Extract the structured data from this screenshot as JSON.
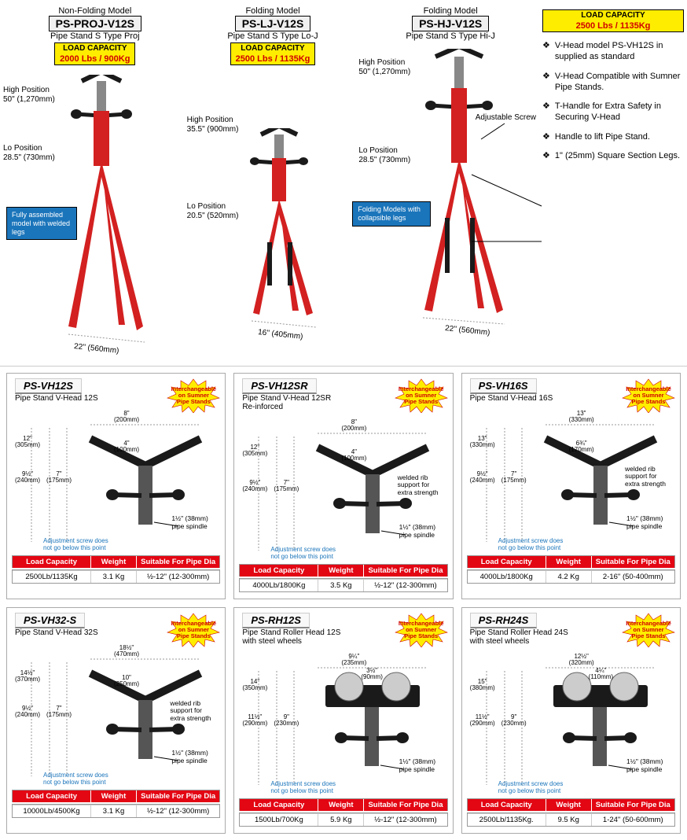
{
  "colors": {
    "red": "#e30613",
    "yellow": "#ffed00",
    "blue": "#1b75bb",
    "stand_red": "#d32020",
    "black": "#1a1a1a"
  },
  "top": {
    "stands": [
      {
        "type": "Non-Folding Model",
        "code": "PS-PROJ-V12S",
        "sub": "Pipe Stand S Type Proj",
        "capacity_title": "LOAD CAPACITY",
        "capacity": "2000 Lbs / 900Kg",
        "high_pos_label": "High Position",
        "high_pos": "50\" (1,270mm)",
        "lo_pos_label": "Lo Position",
        "lo_pos": "28.5\" (730mm)",
        "base": "22\" (560mm)",
        "note": "Fully assembled model with welded legs"
      },
      {
        "type": "Folding Model",
        "code": "PS-LJ-V12S",
        "sub": "Pipe Stand S Type Lo-J",
        "capacity_title": "LOAD CAPACITY",
        "capacity": "2500 Lbs / 1135Kg",
        "high_pos_label": "High Position",
        "high_pos": "35.5\" (900mm)",
        "lo_pos_label": "Lo Position",
        "lo_pos": "20.5\" (520mm)",
        "base": "16\" (405mm)"
      },
      {
        "type": "Folding Model",
        "code": "PS-HJ-V12S",
        "sub": "Pipe Stand S Type Hi-J",
        "capacity_title": "LOAD CAPACITY",
        "capacity": "2500 Lbs / 1135Kg",
        "high_pos_label": "High Position",
        "high_pos": "50\" (1,270mm)",
        "lo_pos_label": "Lo Position",
        "lo_pos": "28.5\" (730mm)",
        "base": "22\" (560mm)",
        "note": "Folding Models with collapsible legs",
        "adj_label": "Adjustable Screw"
      }
    ],
    "features": [
      "V-Head model PS-VH12S in supplied as standard",
      "V-Head Compatible with Sumner Pipe Stands.",
      "T-Handle for Extra Safety in Securing V-Head",
      "Handle to lift Pipe Stand.",
      "1\" (25mm) Square Section Legs."
    ]
  },
  "burst_text": "Interchangeable on Sumner Pipe Stands",
  "spec_heads": [
    "Load Capacity",
    "Weight",
    "Suitable For Pipe Dia"
  ],
  "notes": {
    "adj": "Adjustment screw does not go below this point",
    "spindle": "1½\" (38mm) pipe spindle",
    "rib": "welded rib support for extra strength"
  },
  "cards": [
    {
      "code": "PS-VH12S",
      "sub": "Pipe Stand V-Head 12S",
      "dims": {
        "d1": "12\" (305mm)",
        "d2": "9½\" (240mm)",
        "d3": "7\" (175mm)",
        "top": "8\" (200mm)",
        "inner": "4\" (100mm)"
      },
      "spec": [
        "2500Lb/1135Kg",
        "3.1 Kg",
        "½-12\" (12-300mm)"
      ],
      "has_rib": false
    },
    {
      "code": "PS-VH12SR",
      "sub": "Pipe Stand V-Head 12SR Re-inforced",
      "dims": {
        "d1": "12\" (305mm)",
        "d2": "9½\" (240mm)",
        "d3": "7\" (175mm)",
        "top": "8\" (200mm)",
        "inner": "4\" (100mm)"
      },
      "spec": [
        "4000Lb/1800Kg",
        "3.5 Kg",
        "½-12\" (12-300mm)"
      ],
      "has_rib": true
    },
    {
      "code": "PS-VH16S",
      "sub": "Pipe Stand V-Head 16S",
      "dims": {
        "d1": "13\" (330mm)",
        "d2": "9½\" (240mm)",
        "d3": "7\" (175mm)",
        "top": "13\" (330mm)",
        "inner": "6¾\" (170mm)"
      },
      "spec": [
        "4000Lb/1800Kg",
        "4.2 Kg",
        "2-16\" (50-400mm)"
      ],
      "has_rib": true
    },
    {
      "code": "PS-VH32-S",
      "sub": "Pipe Stand V-Head 32S",
      "dims": {
        "d1": "14½\" (370mm)",
        "d2": "9½\" (240mm)",
        "d3": "7\" (175mm)",
        "top": "18½\" (470mm)",
        "inner": "10\" (250mm)"
      },
      "spec": [
        "10000Lb/4500Kg",
        "3.1 Kg",
        "½-12\" (12-300mm)"
      ],
      "has_rib": true
    },
    {
      "code": "PS-RH12S",
      "sub": "Pipe Stand Roller Head 12S with steel wheels",
      "dims": {
        "d1": "14\" (350mm)",
        "d2": "11½\" (290mm)",
        "d3": "9\" (230mm)",
        "top": "9¼\" (235mm)",
        "roller": "3½\" (90mm)"
      },
      "spec": [
        "1500Lb/700Kg",
        "5.9 Kg",
        "½-12\" (12-300mm)"
      ],
      "is_roller": true
    },
    {
      "code": "PS-RH24S",
      "sub": "Pipe Stand Roller Head 24S with steel wheels",
      "dims": {
        "d1": "15\" (380mm)",
        "d2": "11½\" (290mm)",
        "d3": "9\" (230mm)",
        "top": "12½\" (320mm)",
        "roller": "4¼\" (110mm)"
      },
      "spec": [
        "2500Lb/1135Kg.",
        "9.5 Kg",
        "1-24\" (50-600mm)"
      ],
      "is_roller": true
    }
  ]
}
